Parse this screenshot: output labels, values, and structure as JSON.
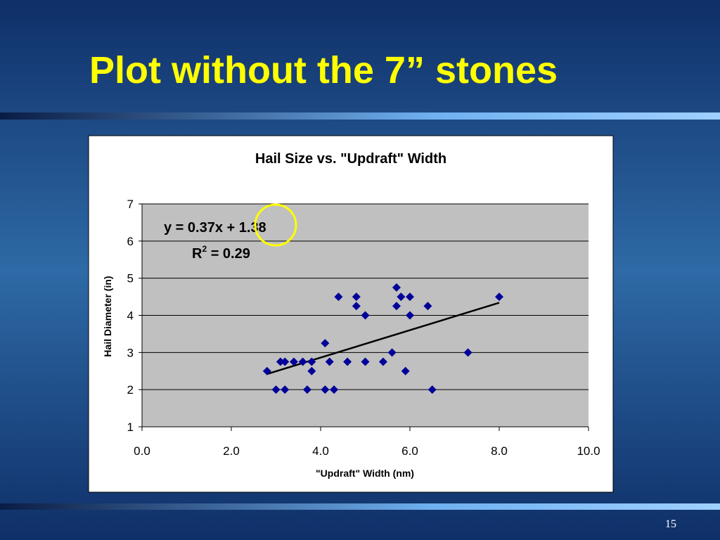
{
  "slide_title": "Plot without the 7” stones",
  "page_number": "15",
  "chart_data": {
    "type": "scatter",
    "title": "Hail Size vs. \"Updraft\" Width",
    "x_label": "\"Updraft\" Width (nm)",
    "y_label": "Hail Diameter (in)",
    "equation": "y = 0.37x + 1.38",
    "r_squared": {
      "base": "R",
      "sup": "2",
      "rest": " = 0.29"
    },
    "color": "#000099",
    "plot_background": "#c0c0c0",
    "grid": true,
    "xlim": [
      0,
      10
    ],
    "ylim": [
      1,
      7
    ],
    "xticks": [
      {
        "value": 0,
        "label": "0.0"
      },
      {
        "value": 2,
        "label": "2.0"
      },
      {
        "value": 4,
        "label": "4.0"
      },
      {
        "value": 6,
        "label": "6.0"
      },
      {
        "value": 8,
        "label": "8.0"
      },
      {
        "value": 10,
        "label": "10.0"
      }
    ],
    "yticks": [
      1,
      2,
      3,
      4,
      5,
      6,
      7
    ],
    "x": [
      2.8,
      3.0,
      3.1,
      3.2,
      3.2,
      3.4,
      3.6,
      3.7,
      3.8,
      3.8,
      4.1,
      4.1,
      4.2,
      4.3,
      4.4,
      4.6,
      4.8,
      4.8,
      5.0,
      5.0,
      5.4,
      5.6,
      5.7,
      5.7,
      5.8,
      5.9,
      6.0,
      6.0,
      6.4,
      6.5,
      7.3,
      8.0
    ],
    "values": [
      2.5,
      2.0,
      2.75,
      2.0,
      2.75,
      2.75,
      2.75,
      2.0,
      2.75,
      2.5,
      3.25,
      2.0,
      2.75,
      2.0,
      4.5,
      2.75,
      4.5,
      4.25,
      4.0,
      2.75,
      2.75,
      3.0,
      4.75,
      4.25,
      4.5,
      2.5,
      4.5,
      4.0,
      4.25,
      2.0,
      3.0,
      4.5
    ],
    "trendline": {
      "color": "#000000",
      "x": [
        2.8,
        8.0
      ],
      "y": [
        2.42,
        4.34
      ]
    }
  }
}
